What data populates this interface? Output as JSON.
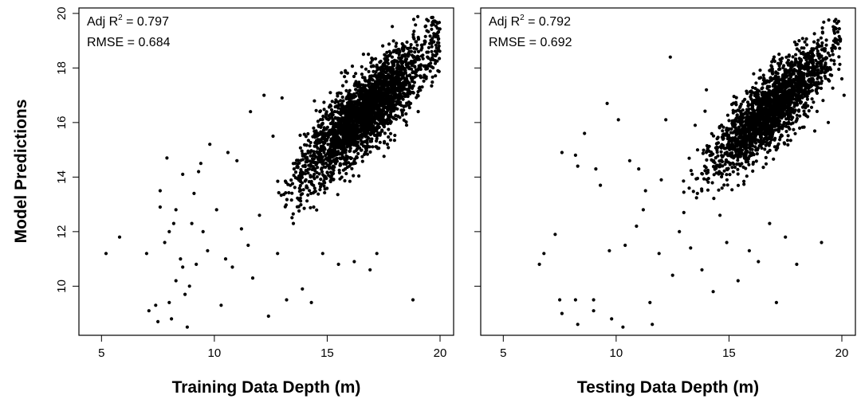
{
  "figure": {
    "ylabel": "Model Predictions"
  },
  "chart_data": [
    {
      "type": "scatter",
      "xlabel": "Training Data Depth (m)",
      "ylabel": "Model Predictions",
      "xlim": [
        4.0,
        20.6
      ],
      "ylim": [
        8.2,
        20.2
      ],
      "xticks": [
        5,
        10,
        15,
        20
      ],
      "yticks": [
        10,
        12,
        14,
        16,
        18,
        20
      ],
      "grid": false,
      "annotation": {
        "r2_prefix": "Adj R",
        "r2_sup": "2",
        "r2_value": " = 0.797",
        "rmse": "RMSE = 0.684"
      },
      "points": {
        "outliers": [
          [
            5.2,
            11.2
          ],
          [
            5.8,
            11.8
          ],
          [
            7.0,
            11.2
          ],
          [
            7.1,
            9.1
          ],
          [
            7.4,
            9.3
          ],
          [
            7.5,
            8.7
          ],
          [
            7.6,
            12.9
          ],
          [
            7.6,
            13.5
          ],
          [
            7.8,
            11.6
          ],
          [
            7.9,
            14.7
          ],
          [
            8.0,
            12.0
          ],
          [
            8.0,
            9.4
          ],
          [
            8.1,
            8.8
          ],
          [
            8.2,
            12.3
          ],
          [
            8.3,
            10.2
          ],
          [
            8.3,
            12.8
          ],
          [
            8.5,
            11.0
          ],
          [
            8.6,
            10.7
          ],
          [
            8.7,
            9.7
          ],
          [
            8.8,
            8.5
          ],
          [
            8.9,
            10.0
          ],
          [
            9.0,
            12.3
          ],
          [
            9.1,
            13.4
          ],
          [
            9.2,
            10.8
          ],
          [
            9.3,
            14.2
          ],
          [
            9.5,
            12.0
          ],
          [
            9.7,
            11.3
          ],
          [
            10.1,
            12.8
          ],
          [
            10.3,
            9.3
          ],
          [
            10.5,
            11.0
          ],
          [
            10.8,
            10.7
          ],
          [
            11.2,
            12.1
          ],
          [
            11.5,
            11.5
          ],
          [
            11.7,
            10.3
          ],
          [
            12.0,
            12.6
          ],
          [
            12.4,
            8.9
          ],
          [
            12.8,
            11.2
          ],
          [
            13.2,
            9.5
          ],
          [
            13.5,
            12.3
          ],
          [
            13.9,
            9.9
          ],
          [
            14.3,
            9.4
          ],
          [
            14.8,
            11.2
          ],
          [
            15.5,
            10.8
          ],
          [
            16.2,
            10.9
          ],
          [
            16.9,
            10.6
          ],
          [
            17.2,
            11.2
          ],
          [
            18.8,
            9.5
          ],
          [
            11.0,
            14.6
          ],
          [
            11.6,
            16.4
          ],
          [
            12.2,
            17.0
          ],
          [
            12.6,
            15.5
          ],
          [
            13.0,
            16.9
          ],
          [
            10.6,
            14.9
          ],
          [
            9.8,
            15.2
          ],
          [
            8.6,
            14.1
          ],
          [
            9.4,
            14.5
          ]
        ],
        "cloud": {
          "center": [
            16.7,
            16.4
          ],
          "spread": [
            1.4,
            1.3
          ],
          "cov": 1.15,
          "count": 2600,
          "xmax": 20.0,
          "ymax": 19.9,
          "ymin": 12.5
        }
      }
    },
    {
      "type": "scatter",
      "xlabel": "Testing Data Depth (m)",
      "ylabel": "",
      "xlim": [
        4.0,
        20.6
      ],
      "ylim": [
        8.2,
        20.2
      ],
      "xticks": [
        5,
        10,
        15,
        20
      ],
      "yticks": [
        10,
        12,
        14,
        16,
        18,
        20
      ],
      "grid": false,
      "annotation": {
        "r2_prefix": "Adj R",
        "r2_sup": "2",
        "r2_value": " = 0.792",
        "rmse": "RMSE = 0.692"
      },
      "points": {
        "outliers": [
          [
            6.6,
            10.8
          ],
          [
            6.8,
            11.2
          ],
          [
            7.3,
            11.9
          ],
          [
            7.5,
            9.5
          ],
          [
            7.6,
            9.0
          ],
          [
            7.6,
            14.9
          ],
          [
            8.2,
            9.5
          ],
          [
            8.2,
            14.8
          ],
          [
            8.3,
            8.6
          ],
          [
            8.3,
            14.4
          ],
          [
            8.6,
            15.6
          ],
          [
            9.0,
            9.5
          ],
          [
            9.0,
            9.1
          ],
          [
            9.1,
            14.3
          ],
          [
            9.3,
            13.7
          ],
          [
            9.6,
            16.7
          ],
          [
            9.7,
            11.3
          ],
          [
            9.8,
            8.8
          ],
          [
            10.1,
            16.1
          ],
          [
            10.3,
            8.5
          ],
          [
            10.4,
            11.5
          ],
          [
            10.6,
            14.6
          ],
          [
            10.9,
            12.2
          ],
          [
            11.0,
            14.3
          ],
          [
            11.3,
            13.5
          ],
          [
            11.5,
            9.4
          ],
          [
            11.6,
            8.6
          ],
          [
            11.9,
            11.2
          ],
          [
            12.2,
            16.1
          ],
          [
            12.4,
            18.4
          ],
          [
            12.5,
            10.4
          ],
          [
            13.0,
            12.7
          ],
          [
            13.3,
            11.4
          ],
          [
            13.5,
            15.9
          ],
          [
            13.8,
            10.6
          ],
          [
            14.0,
            17.2
          ],
          [
            14.3,
            9.8
          ],
          [
            14.9,
            11.6
          ],
          [
            15.4,
            10.2
          ],
          [
            15.9,
            11.3
          ],
          [
            16.3,
            10.9
          ],
          [
            16.8,
            12.3
          ],
          [
            17.1,
            9.4
          ],
          [
            17.5,
            11.8
          ],
          [
            18.0,
            10.8
          ],
          [
            19.1,
            11.6
          ],
          [
            19.4,
            16.0
          ],
          [
            20.0,
            17.6
          ],
          [
            20.1,
            17.0
          ],
          [
            12.8,
            12.0
          ],
          [
            13.6,
            13.4
          ],
          [
            12.0,
            13.9
          ],
          [
            11.2,
            12.8
          ],
          [
            14.6,
            12.6
          ]
        ],
        "cloud": {
          "center": [
            16.9,
            16.5
          ],
          "spread": [
            1.3,
            1.25
          ],
          "cov": 1.1,
          "count": 2100,
          "xmax": 20.0,
          "ymax": 19.8,
          "ymin": 13.2
        }
      }
    }
  ]
}
